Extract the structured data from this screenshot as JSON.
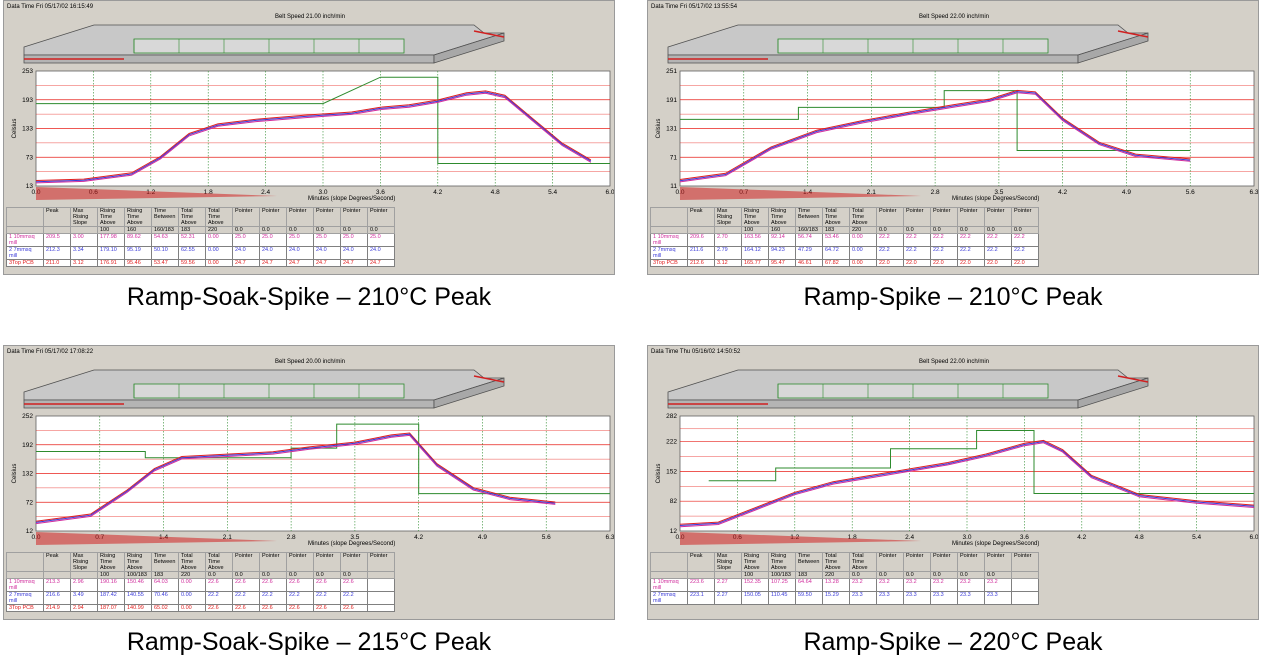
{
  "colors": {
    "grid_vertical": "#2e8b2e",
    "limit_lines": "#e8201a",
    "setpoint": "#2e8b2e",
    "probe1": "#d02c9c",
    "probe2": "#3a3ad8",
    "probe3": "#e02020"
  },
  "table_headers": [
    "Peak",
    "Max Rising Slope",
    "Rising Time Above",
    "Rising Time Above",
    "Time Between",
    "Total Time Above",
    "Total Time Above",
    "Pointer",
    "Pointer",
    "Pointer",
    "Pointer",
    "Pointer",
    "Pointer"
  ],
  "panels": [
    {
      "caption": "Ramp-Soak-Spike – 210°C Peak",
      "datetime": "Data Time Fri 05/17/02 16:15:49",
      "belt_speed": "Belt Speed 21.00 inch/min",
      "y_axis_label": "Celsius",
      "x_axis_label": "Minutes (slope Degrees/Second)",
      "header_row2": [
        "",
        "",
        "100",
        "160",
        "160/183",
        "183",
        "220",
        "0.0",
        "0.0",
        "0.0",
        "0.0",
        "0.0",
        "0.0"
      ],
      "rows": [
        {
          "label": "1 10mmsq mill",
          "values": [
            "209.5",
            "3.00",
            "177.98",
            "89.62",
            "54.63",
            "52.31",
            "0.00",
            "25.0",
            "25.0",
            "25.0",
            "25.0",
            "25.0",
            "25.0"
          ]
        },
        {
          "label": "2 7mmsq mill",
          "values": [
            "212.3",
            "3.34",
            "179.10",
            "95.19",
            "50.10",
            "62.55",
            "0.00",
            "24.0",
            "24.0",
            "24.0",
            "24.0",
            "24.0",
            "24.0"
          ]
        },
        {
          "label": "3Top PCB",
          "values": [
            "211.0",
            "3.12",
            "176.91",
            "95.46",
            "53.47",
            "59.56",
            "0.00",
            "24.7",
            "24.7",
            "24.7",
            "24.7",
            "24.7",
            "24.7"
          ]
        }
      ],
      "chart_data": {
        "type": "line",
        "title": "",
        "xlabel": "Minutes (slope Degrees/Second)",
        "ylabel": "Celsius",
        "xlim": [
          0,
          6.0
        ],
        "ylim": [
          13,
          253
        ],
        "x_ticks": [
          "0.0",
          "0.6",
          "1.2",
          "1.8",
          "2.4",
          "3.0",
          "3.6",
          "4.2",
          "4.8",
          "5.4",
          "6.0"
        ],
        "y_ticks": [
          "13",
          "73",
          "133",
          "193",
          "253"
        ],
        "series": [
          {
            "x": [
              0,
              0.5,
              1.0,
              1.3,
              1.6,
              1.9,
              2.3,
              2.8,
              3.3,
              3.6,
              3.9,
              4.2,
              4.5,
              4.7,
              4.9,
              5.2,
              5.5,
              5.8
            ],
            "y": [
              22,
              25,
              38,
              72,
              120,
              140,
              150,
              158,
              165,
              175,
              180,
              190,
              205,
              209,
              200,
              150,
              100,
              65
            ]
          },
          {
            "x": [
              0,
              3.0,
              3.6,
              3.6,
              4.2,
              4.2,
              6.0
            ],
            "y": [
              185,
              185,
              240,
              240,
              240,
              60,
              60
            ]
          }
        ]
      }
    },
    {
      "caption": "Ramp-Spike – 210°C Peak",
      "datetime": "Data Time Fri 05/17/02 13:55:54",
      "belt_speed": "Belt Speed 22.00 inch/min",
      "y_axis_label": "Celsius",
      "x_axis_label": "Minutes (slope Degrees/Second)",
      "header_row2": [
        "",
        "",
        "100",
        "160",
        "160/183",
        "183",
        "220",
        "0.0",
        "0.0",
        "0.0",
        "0.0",
        "0.0",
        "0.0"
      ],
      "rows": [
        {
          "label": "1 10mmsq mill",
          "values": [
            "209.6",
            "2.70",
            "163.56",
            "92.14",
            "56.74",
            "53.46",
            "0.00",
            "22.2",
            "22.2",
            "22.2",
            "22.2",
            "22.2",
            "22.2"
          ]
        },
        {
          "label": "2 7mmsq mill",
          "values": [
            "211.6",
            "2.79",
            "164.12",
            "94.23",
            "47.29",
            "64.72",
            "0.00",
            "22.2",
            "22.2",
            "22.2",
            "22.2",
            "22.2",
            "22.2"
          ]
        },
        {
          "label": "3Top PCB",
          "values": [
            "212.6",
            "3.12",
            "165.77",
            "95.47",
            "46.61",
            "67.82",
            "0.00",
            "22.0",
            "22.0",
            "22.0",
            "22.0",
            "22.0",
            "22.0"
          ]
        }
      ],
      "chart_data": {
        "type": "line",
        "title": "",
        "xlabel": "Minutes (slope Degrees/Second)",
        "ylabel": "Celsius",
        "xlim": [
          0,
          6.3
        ],
        "ylim": [
          11,
          251
        ],
        "x_ticks": [
          "0.0",
          "0.7",
          "1.4",
          "2.1",
          "2.8",
          "3.5",
          "4.2",
          "4.9",
          "5.6",
          "6.3"
        ],
        "y_ticks": [
          "11",
          "71",
          "131",
          "191",
          "251"
        ],
        "series": [
          {
            "x": [
              0,
              0.5,
              1.0,
              1.5,
              2.0,
              2.5,
              3.0,
              3.4,
              3.7,
              3.9,
              4.2,
              4.6,
              5.0,
              5.6
            ],
            "y": [
              22,
              35,
              90,
              125,
              145,
              162,
              178,
              190,
              208,
              205,
              150,
              100,
              75,
              65
            ]
          },
          {
            "x": [
              0,
              1.3,
              1.3,
              2.9,
              2.9,
              3.7,
              3.7,
              5.6
            ],
            "y": [
              150,
              150,
              175,
              175,
              210,
              210,
              85,
              85
            ]
          }
        ]
      }
    },
    {
      "caption": "Ramp-Soak-Spike – 215°C Peak",
      "datetime": "Data Time Fri 05/17/02 17:08:22",
      "belt_speed": "Belt Speed 20.00 inch/min",
      "y_axis_label": "Celsius",
      "x_axis_label": "Minutes (slope Degrees/Second)",
      "header_row2": [
        "",
        "",
        "100",
        "100/183",
        "183",
        "220",
        "0.0",
        "0.0",
        "0.0",
        "0.0",
        "0.0",
        "0.0",
        ""
      ],
      "rows": [
        {
          "label": "1 10mmsq mill",
          "values": [
            "213.3",
            "2.96",
            "190.16",
            "150.46",
            "64.03",
            "0.00",
            "22.6",
            "22.6",
            "22.6",
            "22.6",
            "22.6",
            "22.6",
            ""
          ]
        },
        {
          "label": "2 7mmsq mill",
          "values": [
            "216.6",
            "3.49",
            "187.42",
            "140.55",
            "70.46",
            "0.00",
            "22.2",
            "22.2",
            "22.2",
            "22.2",
            "22.2",
            "22.2",
            ""
          ]
        },
        {
          "label": "3Top PCB",
          "values": [
            "214.9",
            "2.94",
            "187.07",
            "140.99",
            "65.02",
            "0.00",
            "22.6",
            "22.6",
            "22.6",
            "22.6",
            "22.6",
            "22.6",
            ""
          ]
        }
      ],
      "chart_data": {
        "type": "line",
        "title": "",
        "xlabel": "Minutes (slope Degrees/Second)",
        "ylabel": "Celsius",
        "xlim": [
          0,
          6.3
        ],
        "ylim": [
          12,
          252
        ],
        "x_ticks": [
          "0.0",
          "0.7",
          "1.4",
          "2.1",
          "2.8",
          "3.5",
          "4.2",
          "4.9",
          "5.6",
          "6.3"
        ],
        "y_ticks": [
          "12",
          "72",
          "132",
          "192",
          "252"
        ],
        "series": [
          {
            "x": [
              0,
              0.6,
              1.0,
              1.3,
              1.6,
              2.1,
              2.6,
              3.0,
              3.5,
              3.9,
              4.1,
              4.4,
              4.8,
              5.2,
              5.7
            ],
            "y": [
              30,
              45,
              95,
              140,
              165,
              170,
              175,
              185,
              195,
              210,
              214,
              150,
              100,
              80,
              70
            ]
          },
          {
            "x": [
              0,
              1.2,
              1.2,
              2.8,
              2.8,
              3.3,
              3.3,
              4.2,
              4.2,
              6.3
            ],
            "y": [
              178,
              178,
              165,
              165,
              185,
              185,
              235,
              235,
              90,
              90
            ]
          }
        ]
      }
    },
    {
      "caption": "Ramp-Spike – 220°C Peak",
      "datetime": "Data Time Thu 05/16/02 14:50:52",
      "belt_speed": "Belt Speed 22.00 inch/min",
      "y_axis_label": "Celsius",
      "x_axis_label": "Minutes (slope Degrees/Second)",
      "header_row2": [
        "",
        "",
        "100",
        "100/183",
        "183",
        "220",
        "0.0",
        "0.0",
        "0.0",
        "0.0",
        "0.0",
        "0.0",
        ""
      ],
      "rows": [
        {
          "label": "1 10mmsq mill",
          "values": [
            "223.6",
            "2.27",
            "152.35",
            "107.25",
            "64.64",
            "13.28",
            "23.2",
            "23.2",
            "23.2",
            "23.2",
            "23.2",
            "23.2",
            ""
          ]
        },
        {
          "label": "2 7mmsq mill",
          "values": [
            "223.1",
            "2.27",
            "150.05",
            "110.45",
            "59.50",
            "15.29",
            "23.3",
            "23.3",
            "23.3",
            "23.3",
            "23.3",
            "23.3",
            ""
          ]
        }
      ],
      "chart_data": {
        "type": "line",
        "title": "",
        "xlabel": "Minutes (slope Degrees/Second)",
        "ylabel": "Celsius",
        "xlim": [
          0,
          6.0
        ],
        "ylim": [
          12,
          282
        ],
        "x_ticks": [
          "0.0",
          "0.6",
          "1.2",
          "1.8",
          "2.4",
          "3.0",
          "3.6",
          "4.2",
          "4.8",
          "5.4",
          "6.0"
        ],
        "y_ticks": [
          "12",
          "82",
          "152",
          "222",
          "282"
        ],
        "series": [
          {
            "x": [
              0,
              0.4,
              0.8,
              1.2,
              1.6,
              2.0,
              2.4,
              2.8,
              3.2,
              3.6,
              3.8,
              4.0,
              4.3,
              4.8,
              5.4,
              6.0
            ],
            "y": [
              25,
              30,
              65,
              100,
              125,
              140,
              155,
              170,
              190,
              215,
              222,
              200,
              140,
              95,
              80,
              70
            ]
          },
          {
            "x": [
              0.3,
              1.0,
              1.0,
              2.2,
              2.2,
              3.1,
              3.1,
              3.7,
              3.7,
              6.0
            ],
            "y": [
              130,
              130,
              160,
              160,
              205,
              205,
              248,
              248,
              100,
              100
            ]
          }
        ]
      }
    }
  ]
}
